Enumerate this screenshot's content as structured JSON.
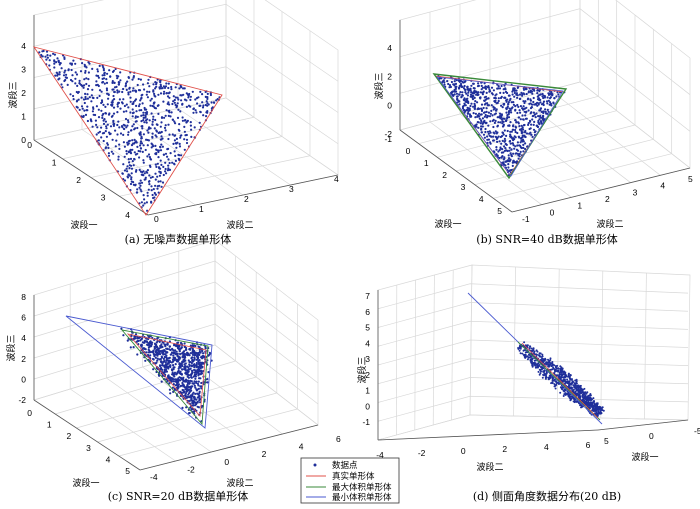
{
  "colors": {
    "points": "#1f2f9a",
    "true_simplex": "#e0504a",
    "max_volume_simplex": "#3a8a3a",
    "min_volume_simplex": "#4a5ad0",
    "grid": "#d8d8d8",
    "axis": "#555555"
  },
  "legend": {
    "items": [
      {
        "label": "数据点",
        "color": "#1f2f9a",
        "kind": "marker"
      },
      {
        "label": "真实单形体",
        "color": "#e0504a",
        "kind": "line"
      },
      {
        "label": "最大体积单形体",
        "color": "#3a8a3a",
        "kind": "line"
      },
      {
        "label": "最小体积单形体",
        "color": "#4a5ad0",
        "kind": "line"
      }
    ]
  },
  "chart_data": [
    {
      "type": "scatter",
      "caption": "(a) 无噪声数据单形体",
      "xlabel": "波段一",
      "ylabel": "波段二",
      "zlabel": "波段三",
      "xticks": [
        "0",
        "1",
        "2",
        "3",
        "4"
      ],
      "yticks": [
        "0",
        "1",
        "2",
        "3",
        "4"
      ],
      "zticks": [
        "0",
        "1",
        "2",
        "3",
        "4"
      ],
      "true_simplex": [
        [
          0,
          0,
          4
        ],
        [
          4,
          0,
          0
        ],
        [
          0,
          4,
          0
        ]
      ],
      "series": [
        {
          "label": "数据点",
          "points_description": "uniformly distributed inside the true simplex"
        }
      ]
    },
    {
      "type": "scatter",
      "caption": "(b) SNR=40 dB数据单形体",
      "xlabel": "波段一",
      "ylabel": "波段二",
      "zlabel": "波段三",
      "xticks": [
        "-1",
        "0",
        "1",
        "2",
        "3",
        "4",
        "5"
      ],
      "yticks": [
        "-1",
        "0",
        "1",
        "2",
        "3",
        "4",
        "5"
      ],
      "zticks": [
        "-2",
        "0",
        "2",
        "4"
      ],
      "true_simplex": [
        [
          0,
          0,
          4
        ],
        [
          4,
          0,
          0
        ],
        [
          0,
          4,
          0
        ]
      ]
    },
    {
      "type": "scatter",
      "caption": "(c) SNR=20 dB数据单形体",
      "xlabel": "波段一",
      "ylabel": "波段二",
      "zlabel": "波段三",
      "xticks": [
        "0",
        "1",
        "2",
        "3",
        "4",
        "5"
      ],
      "yticks": [
        "-4",
        "-2",
        "0",
        "2",
        "4",
        "6"
      ],
      "zticks": [
        "-2",
        "0",
        "2",
        "4",
        "6",
        "8"
      ],
      "true_simplex": [
        [
          0,
          0,
          4
        ],
        [
          4,
          0,
          0
        ],
        [
          0,
          4,
          0
        ]
      ]
    },
    {
      "type": "scatter",
      "caption": "(d) 侧面角度数据分布(20 dB)",
      "xlabel": "波段一",
      "ylabel": "波段二",
      "zlabel": "波段三",
      "xticks": [
        "-5",
        "0",
        "5"
      ],
      "yticks": [
        "-4",
        "-2",
        "0",
        "2",
        "4",
        "6"
      ],
      "zticks": [
        "-1",
        "0",
        "1",
        "2",
        "3",
        "4",
        "5",
        "6",
        "7"
      ]
    }
  ]
}
